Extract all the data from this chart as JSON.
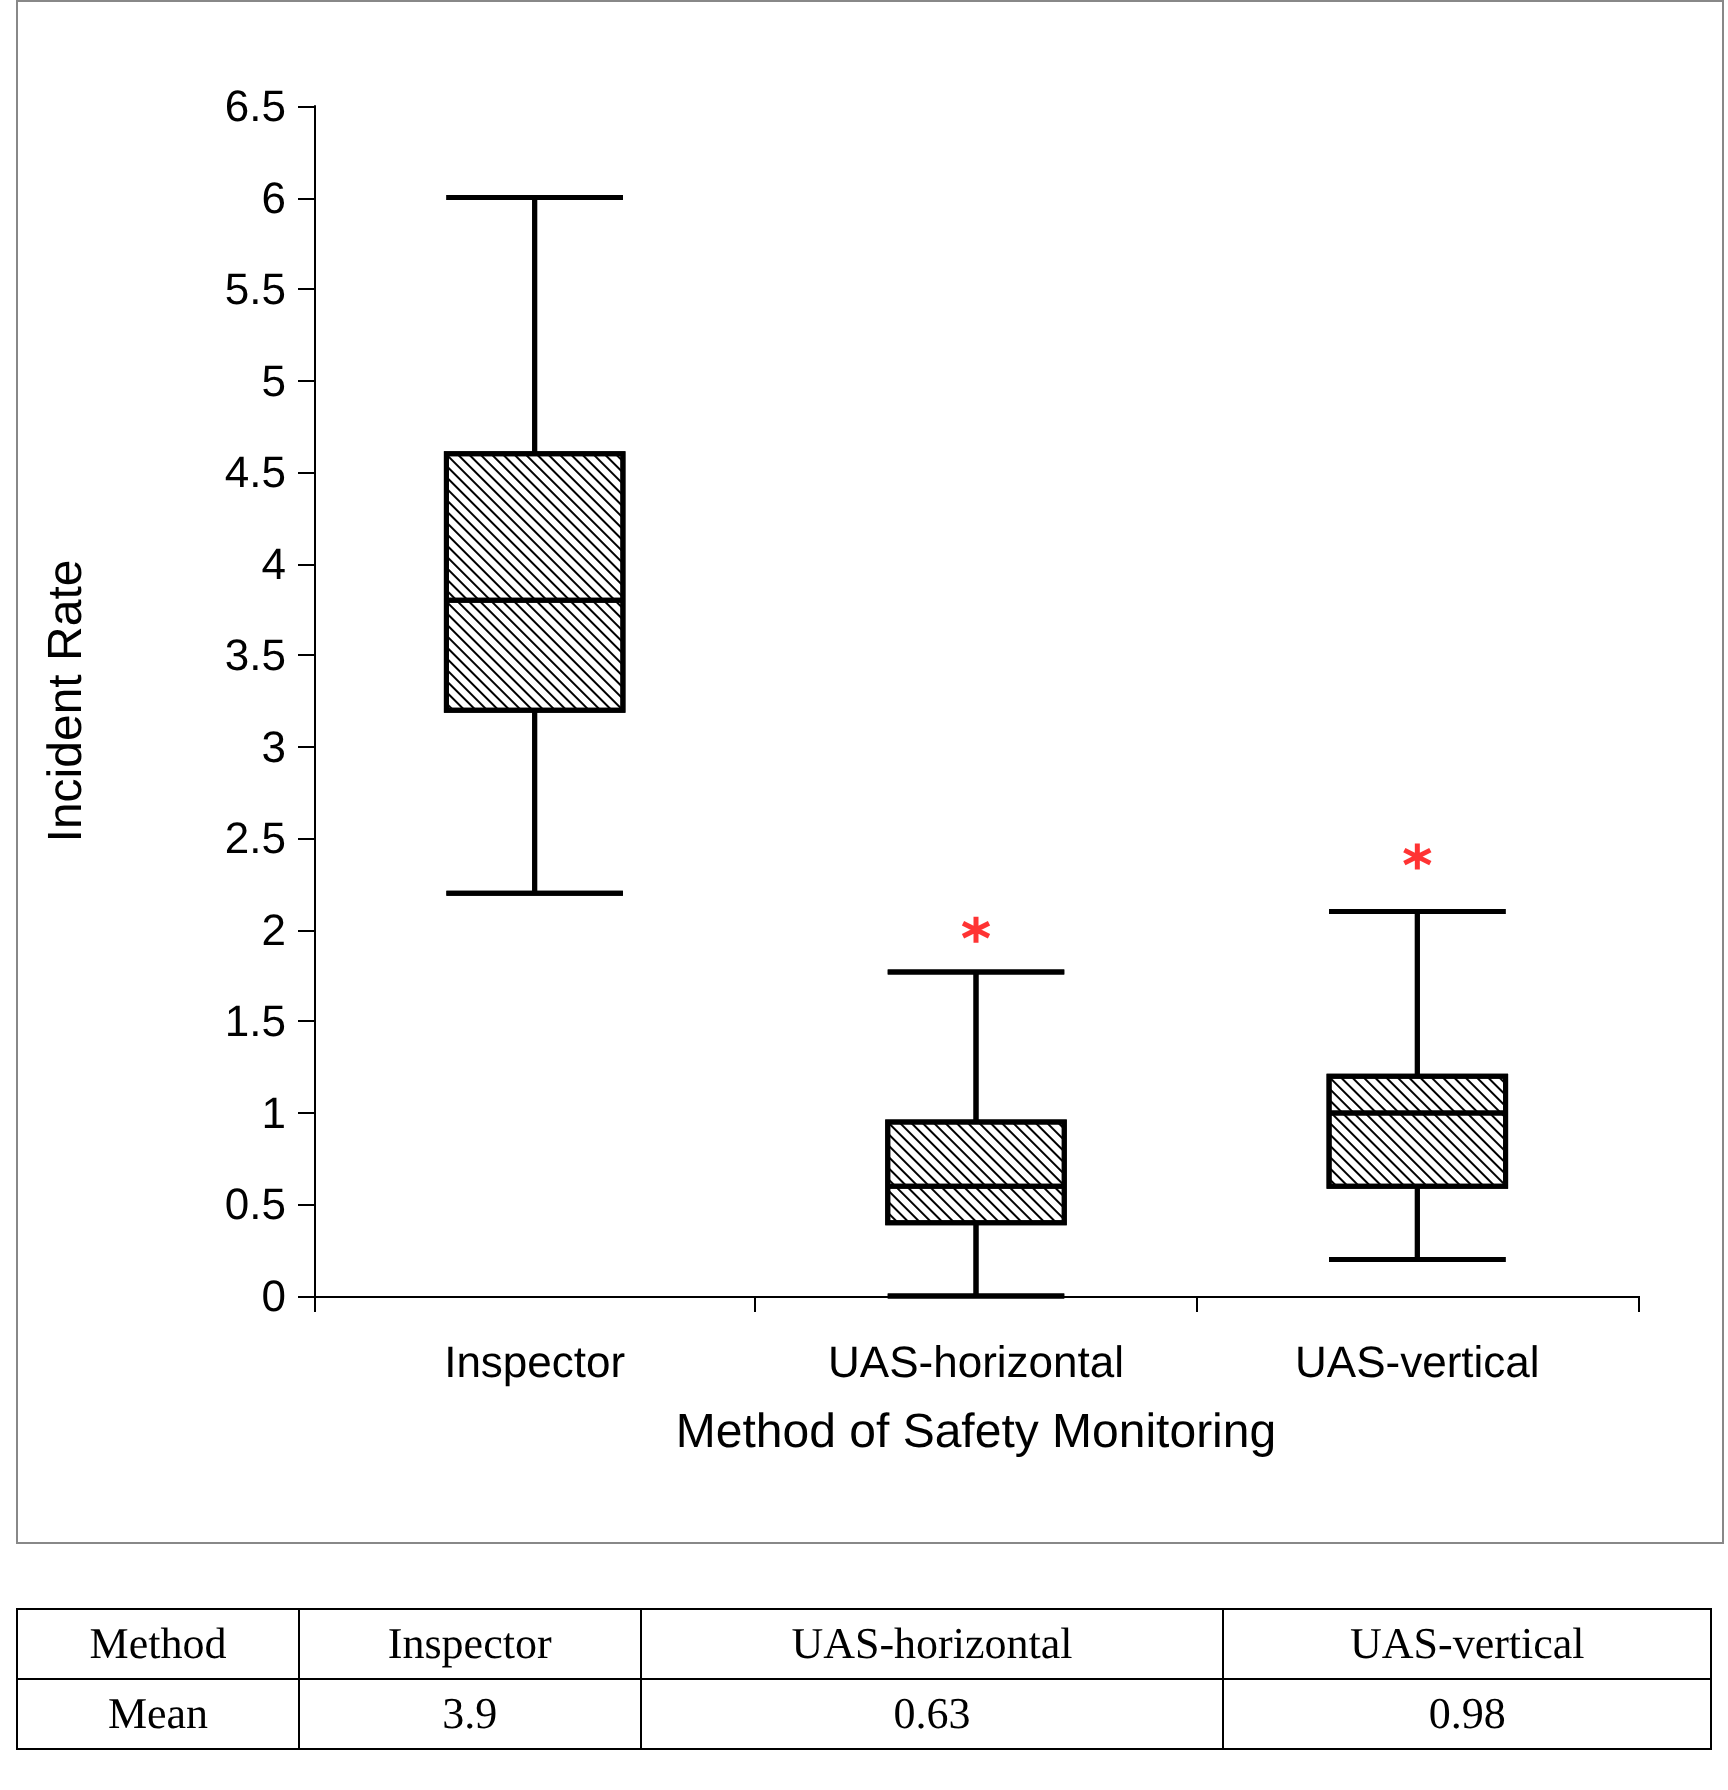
{
  "chart_data": {
    "type": "box",
    "ylabel": "Incident Rate",
    "xlabel": "Method of Safety Monitoring",
    "categories": [
      "Inspector",
      "UAS-horizontal",
      "UAS-vertical"
    ],
    "ylim": [
      0,
      6.5
    ],
    "yticks": [
      0,
      0.5,
      1,
      1.5,
      2,
      2.5,
      3,
      3.5,
      4,
      4.5,
      5,
      5.5,
      6,
      6.5
    ],
    "series": [
      {
        "type": "box",
        "color": "#000000",
        "boxes": [
          {
            "low": 2.2,
            "q1": 3.2,
            "median": 3.8,
            "q3": 4.6,
            "high": 6.0
          },
          {
            "low": 0,
            "q1": 0.4,
            "median": 0.6,
            "q3": 0.95,
            "high": 1.77
          },
          {
            "low": 0.2,
            "q1": 0.6,
            "median": 1.0,
            "q3": 1.2,
            "high": 2.1
          }
        ]
      },
      {
        "type": "scatter",
        "color": "#ff0000",
        "marker": "cross",
        "x": [
          "UAS-horizontal",
          "UAS-vertical"
        ],
        "values": [
          2.0,
          2.4
        ]
      }
    ],
    "annotations": [
      "Method",
      "Mean",
      "3.9",
      "0.63",
      "0.98"
    ]
  }
}
